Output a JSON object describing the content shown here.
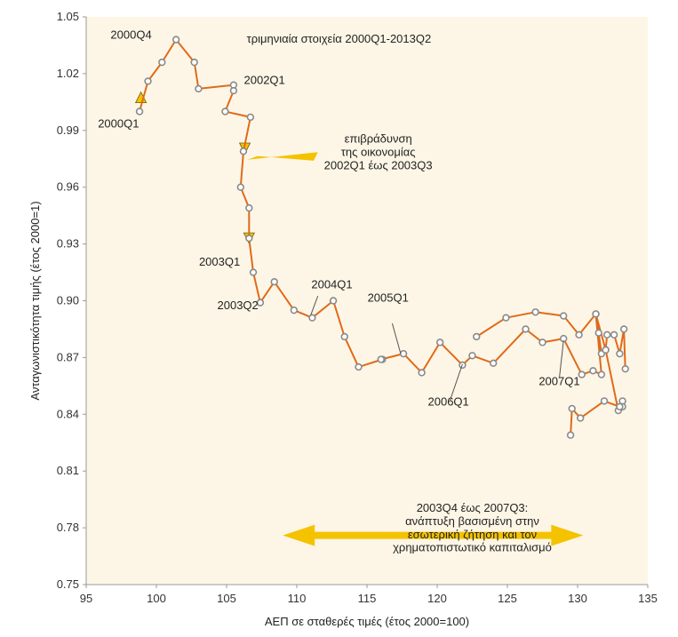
{
  "chart_data": {
    "type": "line",
    "title": "τριμηνιαία στοιχεία 2000Q1-2013Q2",
    "xlabel": "ΑΕΠ σε σταθερές τιμές (έτος 2000=100)",
    "ylabel": "Ανταγωνιστικότητα τιμής (έτος 2000=1)",
    "xlim": [
      95,
      135
    ],
    "ylim": [
      0.75,
      1.05
    ],
    "grid": false,
    "background": "#fdf6e6",
    "line_color": "#e06a1a",
    "marker_fill": "#ffffff",
    "marker_stroke": "#8a8a8a",
    "arrow_color": "#f5c200",
    "x_ticks": [
      95,
      100,
      105,
      110,
      115,
      120,
      125,
      130,
      135
    ],
    "y_ticks": [
      0.75,
      0.78,
      0.81,
      0.84,
      0.87,
      0.9,
      0.93,
      0.96,
      0.99,
      1.02,
      1.05
    ],
    "y_tick_labels": [
      "0.75",
      "0.78",
      "0.81",
      "0.84",
      "0.87",
      "0.90",
      "0.93",
      "0.96",
      "0.99",
      "1.02",
      "1.05"
    ],
    "points": [
      {
        "x": 98.8,
        "y": 1.0
      },
      {
        "x": 99.4,
        "y": 1.016
      },
      {
        "x": 100.4,
        "y": 1.026
      },
      {
        "x": 101.4,
        "y": 1.038
      },
      {
        "x": 102.7,
        "y": 1.026
      },
      {
        "x": 103.0,
        "y": 1.012
      },
      {
        "x": 105.5,
        "y": 1.014
      },
      {
        "x": 105.5,
        "y": 1.011
      },
      {
        "x": 104.9,
        "y": 1.0
      },
      {
        "x": 106.7,
        "y": 0.997
      },
      {
        "x": 106.2,
        "y": 0.979
      },
      {
        "x": 106.0,
        "y": 0.96
      },
      {
        "x": 106.6,
        "y": 0.949
      },
      {
        "x": 106.6,
        "y": 0.933
      },
      {
        "x": 106.9,
        "y": 0.915
      },
      {
        "x": 107.4,
        "y": 0.899
      },
      {
        "x": 108.4,
        "y": 0.91
      },
      {
        "x": 109.8,
        "y": 0.895
      },
      {
        "x": 111.1,
        "y": 0.891
      },
      {
        "x": 112.6,
        "y": 0.9
      },
      {
        "x": 113.4,
        "y": 0.881
      },
      {
        "x": 114.4,
        "y": 0.865
      },
      {
        "x": 116.1,
        "y": 0.869
      },
      {
        "x": 116.0,
        "y": 0.869
      },
      {
        "x": 117.6,
        "y": 0.872
      },
      {
        "x": 118.9,
        "y": 0.862
      },
      {
        "x": 120.2,
        "y": 0.878
      },
      {
        "x": 121.8,
        "y": 0.866
      },
      {
        "x": 122.5,
        "y": 0.871
      },
      {
        "x": 124.0,
        "y": 0.867
      },
      {
        "x": 126.3,
        "y": 0.885
      },
      {
        "x": 127.5,
        "y": 0.878
      },
      {
        "x": 129.0,
        "y": 0.88
      },
      {
        "x": 130.3,
        "y": 0.861
      },
      {
        "x": 131.1,
        "y": 0.863
      },
      {
        "x": 131.7,
        "y": 0.861
      },
      {
        "x": 131.3,
        "y": 0.893
      },
      {
        "x": 131.5,
        "y": 0.883
      },
      {
        "x": 131.7,
        "y": 0.872
      },
      {
        "x": 132.0,
        "y": 0.874
      },
      {
        "x": 132.1,
        "y": 0.882
      },
      {
        "x": 132.6,
        "y": 0.882
      },
      {
        "x": 133.0,
        "y": 0.872
      },
      {
        "x": 133.3,
        "y": 0.885
      },
      {
        "x": 133.4,
        "y": 0.864
      }
    ],
    "branch_points": [
      {
        "x": 122.8,
        "y": 0.881
      },
      {
        "x": 124.9,
        "y": 0.891
      },
      {
        "x": 127.0,
        "y": 0.894
      },
      {
        "x": 129.0,
        "y": 0.892
      },
      {
        "x": 130.1,
        "y": 0.882
      },
      {
        "x": 131.3,
        "y": 0.893
      },
      {
        "x": 132.0,
        "y": 0.874
      },
      {
        "x": 132.9,
        "y": 0.842
      },
      {
        "x": 133.2,
        "y": 0.847
      },
      {
        "x": 133.2,
        "y": 0.844
      },
      {
        "x": 133.0,
        "y": 0.844
      },
      {
        "x": 131.9,
        "y": 0.847
      },
      {
        "x": 130.2,
        "y": 0.838
      },
      {
        "x": 129.6,
        "y": 0.843
      },
      {
        "x": 129.5,
        "y": 0.829
      }
    ],
    "annotations": [
      {
        "text": "2000Q4",
        "x": 98.2,
        "y": 1.0385
      },
      {
        "text": "2000Q1",
        "x": 97.3,
        "y": 0.9915
      },
      {
        "text": "2002Q1",
        "x": 107.7,
        "y": 1.0145
      },
      {
        "text": "επιβράδυνση",
        "x": 115.8,
        "y": 0.9835
      },
      {
        "text": "της οικονομίας",
        "x": 115.8,
        "y": 0.9765
      },
      {
        "text": "2002Q1 έως 2003Q3",
        "x": 115.8,
        "y": 0.9695
      },
      {
        "text": "2003Q1",
        "x": 104.5,
        "y": 0.9185
      },
      {
        "text": "2003Q2",
        "x": 105.8,
        "y": 0.8955
      },
      {
        "text": "2004Q1",
        "x": 112.5,
        "y": 0.9065
      },
      {
        "text": "2005Q1",
        "x": 116.5,
        "y": 0.8995
      },
      {
        "text": "2006Q1",
        "x": 120.8,
        "y": 0.8445
      },
      {
        "text": "2007Q1",
        "x": 128.7,
        "y": 0.8555
      },
      {
        "text": "2003Q4 έως 2007Q3:",
        "x": 122.5,
        "y": 0.7885
      },
      {
        "text": "ανάπτυξη βασισμένη στην",
        "x": 122.5,
        "y": 0.7815
      },
      {
        "text": "εσωτερική ζήτηση και τον",
        "x": 122.5,
        "y": 0.7745
      },
      {
        "text": "χρηματοπιστωτικό καπιταλισμό",
        "x": 122.5,
        "y": 0.7675
      }
    ]
  }
}
